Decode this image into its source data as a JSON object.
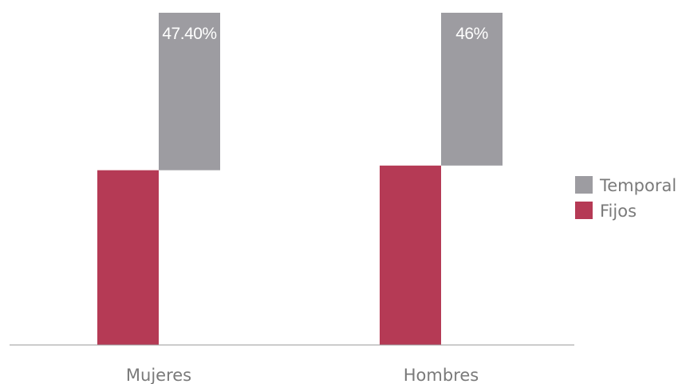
{
  "chart_data": {
    "type": "bar",
    "subtype": "waterfall-stacked",
    "categories": [
      "Mujeres",
      "Hombres"
    ],
    "series": [
      {
        "name": "Fijos",
        "values": [
          52.6,
          54
        ],
        "color": "#b53a55"
      },
      {
        "name": "Temporal",
        "values": [
          47.4,
          46
        ],
        "color": "#9d9ca1"
      }
    ],
    "data_labels": {
      "Temporal": [
        "47.40%",
        "46%"
      ]
    },
    "ylim": [
      0,
      100
    ],
    "legend": {
      "placement": "right",
      "entries": [
        "Temporal",
        "Fijos"
      ]
    },
    "grid": false
  }
}
